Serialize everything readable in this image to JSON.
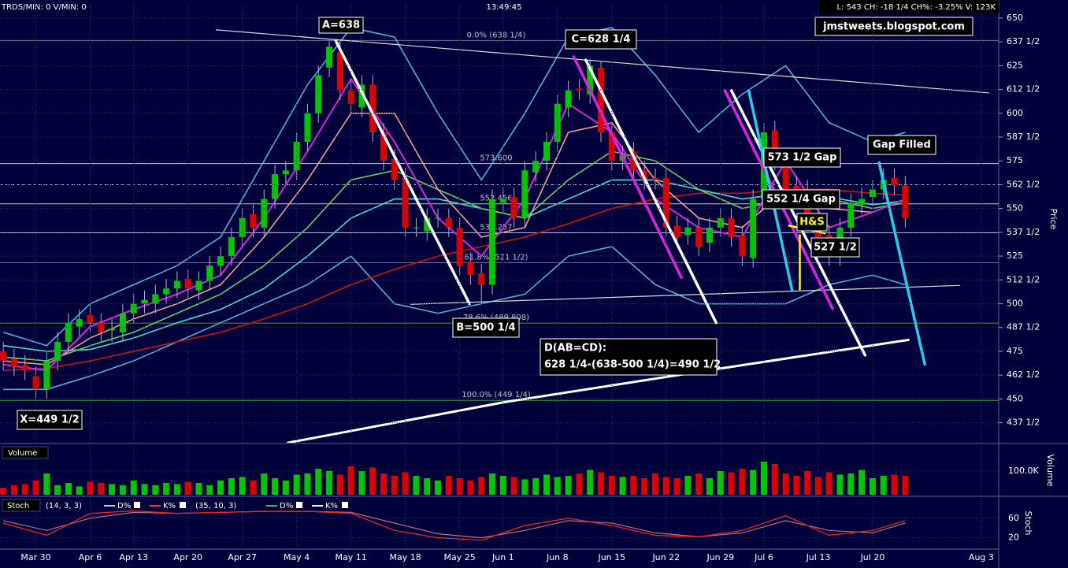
{
  "header": {
    "left": "TRDS/MIN: 0 V/MIN: 0",
    "time": "13:49:45",
    "quote": "L: 543 CH: -18 1/4 CH%: -3.25% V: 123K",
    "watermark": "jmstweets.blogspot.com"
  },
  "chart_data": [
    {
      "type": "candlestick",
      "y_label": "Price",
      "grid": true,
      "up_color": "#00c800",
      "down_color": "#e00000",
      "xlim": [
        -0.3,
        91.6
      ],
      "ylim": [
        427,
        657
      ],
      "xticks": [
        {
          "value": 3,
          "label": "Mar 30"
        },
        {
          "value": 8,
          "label": "Apr 6"
        },
        {
          "value": 12,
          "label": "Apr 13"
        },
        {
          "value": 17,
          "label": "Apr 20"
        },
        {
          "value": 22,
          "label": "Apr 27"
        },
        {
          "value": 27,
          "label": "May 4"
        },
        {
          "value": 32,
          "label": "May 11"
        },
        {
          "value": 37,
          "label": "May 18"
        },
        {
          "value": 42,
          "label": "May 25"
        },
        {
          "value": 46,
          "label": "Jun 1"
        },
        {
          "value": 51,
          "label": "Jun 8"
        },
        {
          "value": 56,
          "label": "Jun 15"
        },
        {
          "value": 61,
          "label": "Jun 22"
        },
        {
          "value": 66,
          "label": "Jun 29"
        },
        {
          "value": 70,
          "label": "Jul 6"
        },
        {
          "value": 75,
          "label": "Jul 13"
        },
        {
          "value": 80,
          "label": "Jul 20"
        },
        {
          "value": 90,
          "label": "Aug 3"
        }
      ],
      "yticks": [
        650,
        {
          "value": 637.5,
          "label": "637 1/2"
        },
        625,
        {
          "value": 612.5,
          "label": "612 1/2"
        },
        600,
        {
          "value": 587.5,
          "label": "587 1/2"
        },
        575,
        {
          "value": 562.5,
          "label": "562 1/2"
        },
        550,
        {
          "value": 537.5,
          "label": "537 1/2"
        },
        525,
        {
          "value": 512.5,
          "label": "512 1/2"
        },
        500,
        {
          "value": 487.5,
          "label": "487 1/2"
        },
        475,
        {
          "value": 462.5,
          "label": "462 1/2"
        },
        450,
        {
          "value": 437.5,
          "label": "437 1/2"
        }
      ],
      "open": [
        475,
        471,
        468,
        462,
        455,
        470,
        480,
        488,
        494,
        490,
        486,
        485,
        495,
        500,
        500,
        505,
        508,
        513,
        507,
        512,
        520,
        525,
        535,
        547,
        540,
        555,
        568,
        570,
        585,
        600,
        624,
        632,
        612,
        603,
        615,
        590,
        576,
        566,
        540,
        538,
        545,
        545,
        540,
        522,
        516,
        510,
        553,
        556,
        545,
        569,
        575,
        585,
        603,
        613,
        610,
        624,
        590,
        575,
        580,
        570,
        566,
        566,
        541,
        536,
        540,
        532,
        540,
        545,
        536,
        524,
        555,
        591,
        574,
        562,
        560,
        545,
        536,
        525,
        540,
        552,
        556,
        560,
        566,
        562
      ],
      "high": [
        480,
        476,
        473,
        467,
        475,
        485,
        495,
        497,
        499,
        495,
        492,
        500,
        505,
        507,
        510,
        513,
        517,
        518,
        517,
        525,
        530,
        540,
        550,
        552,
        560,
        573,
        575,
        590,
        605,
        625,
        638,
        637,
        617,
        620,
        620,
        595,
        581,
        571,
        545,
        550,
        550,
        550,
        545,
        527,
        521,
        560,
        561,
        561,
        575,
        580,
        590,
        610,
        617,
        618,
        628.25,
        627,
        595,
        583,
        585,
        575,
        571,
        571,
        546,
        545,
        545,
        545,
        550,
        550,
        541,
        560,
        595,
        596,
        579,
        567,
        565,
        550,
        541,
        545,
        558,
        561,
        565,
        571,
        571,
        567
      ],
      "low": [
        465,
        462,
        460,
        449.5,
        450,
        465,
        475,
        483,
        485,
        480,
        480,
        480,
        490,
        495,
        495,
        500,
        503,
        503,
        502,
        507,
        515,
        520,
        530,
        535,
        535,
        550,
        563,
        565,
        580,
        595,
        619,
        607,
        600,
        598,
        585,
        570,
        560,
        535,
        535,
        533,
        540,
        535,
        515,
        510,
        500.25,
        505,
        548,
        540,
        540,
        564,
        570,
        580,
        598,
        607,
        605,
        585,
        570,
        570,
        565,
        560,
        560,
        535,
        530,
        531,
        525,
        527,
        535,
        530,
        520,
        519,
        550,
        570,
        555,
        555,
        540,
        530,
        520,
        520,
        535,
        547,
        551,
        555,
        557,
        540
      ],
      "close": [
        470,
        467,
        465,
        455,
        470,
        480,
        490,
        492,
        490,
        485,
        487,
        495,
        500,
        502,
        505,
        508,
        512,
        508,
        512,
        520,
        525,
        535,
        545,
        540,
        555,
        568,
        570,
        585,
        600,
        620,
        635,
        612,
        605,
        615,
        590,
        575,
        565,
        540,
        540,
        545,
        545,
        540,
        520,
        515,
        510,
        555,
        555,
        545,
        570,
        575,
        585,
        605,
        612,
        612,
        625,
        590,
        575,
        578,
        570,
        565,
        565,
        540,
        535,
        540,
        530,
        540,
        545,
        535,
        525,
        555,
        590,
        575,
        560,
        560,
        545,
        535,
        525,
        540,
        553,
        555,
        560,
        565,
        562,
        545
      ],
      "overlay_x": [
        0,
        4,
        8,
        12,
        16,
        20,
        24,
        28,
        32,
        36,
        40,
        44,
        48,
        52,
        56,
        60,
        64,
        68,
        72,
        76,
        80,
        83
      ],
      "overlays": [
        {
          "color": "#4fb0e0",
          "values": [
            485,
            478,
            500,
            510,
            520,
            535,
            575,
            615,
            645,
            640,
            600,
            565,
            600,
            640,
            645,
            620,
            590,
            610,
            625,
            595,
            585,
            590
          ]
        },
        {
          "color": "#4fb0e0",
          "values": [
            455,
            455,
            462,
            470,
            480,
            490,
            500,
            510,
            525,
            500,
            495,
            500,
            505,
            525,
            530,
            510,
            500,
            500,
            500,
            510,
            515,
            510
          ]
        },
        {
          "color": "#d01010",
          "values": [
            465,
            466,
            470,
            475,
            480,
            485,
            492,
            500,
            510,
            518,
            525,
            530,
            535,
            542,
            550,
            555,
            558,
            558,
            560,
            560,
            558,
            557
          ]
        },
        {
          "color": "#40e0d0",
          "values": [
            478,
            475,
            476,
            482,
            490,
            497,
            508,
            525,
            545,
            555,
            555,
            550,
            545,
            555,
            565,
            565,
            560,
            555,
            558,
            556,
            552,
            554
          ]
        },
        {
          "color": "#60d060",
          "values": [
            472,
            470,
            478,
            485,
            495,
            505,
            520,
            540,
            565,
            570,
            560,
            550,
            545,
            565,
            580,
            575,
            560,
            550,
            555,
            555,
            550,
            553
          ]
        },
        {
          "color": "#f0a090",
          "values": [
            470,
            468,
            482,
            492,
            500,
            510,
            535,
            565,
            600,
            600,
            560,
            535,
            540,
            590,
            595,
            565,
            545,
            540,
            560,
            550,
            548,
            555
          ]
        },
        {
          "color": "#e020e0",
          "values": [
            468,
            465,
            488,
            497,
            505,
            515,
            545,
            580,
            618,
            585,
            545,
            525,
            555,
            605,
            590,
            555,
            540,
            535,
            575,
            540,
            548,
            555
          ]
        }
      ],
      "levels": [
        {
          "value": 638.25,
          "label": "0.0% (638 1/4)",
          "color": "#3a9a3a"
        },
        {
          "value": 573.6,
          "label": "573.600",
          "color": "#c8c8c8"
        },
        {
          "value": 562.5,
          "color": "#c8c8c8",
          "dashed": true
        },
        {
          "value": 552.456,
          "label": "552.456",
          "color": "#c8c8c8"
        },
        {
          "value": 537.257,
          "label": "537.257",
          "color": "#c8c8c8"
        },
        {
          "value": 521.5,
          "label": "61.8% (521 1/2)",
          "color": "#3a9a3a"
        },
        {
          "value": 489.808,
          "label": "78.6% (489.808)",
          "color": "#3a9a3a"
        },
        {
          "value": 449.25,
          "label": "100.0% (449 1/4)",
          "color": "#3a9a3a"
        }
      ],
      "trendlines": [
        {
          "color": "#d8d8d8",
          "width": 1.2,
          "points": [
            [
              19.6,
              643.8
            ],
            [
              90.7,
              610.7
            ]
          ]
        },
        {
          "color": "#d8d8d8",
          "width": 1.2,
          "points": [
            [
              37.5,
              499.7
            ],
            [
              88,
              509.6
            ]
          ]
        },
        {
          "color": "#ffffff",
          "width": 3,
          "points": [
            [
              26.2,
              427
            ],
            [
              46.1,
              448.3
            ],
            [
              66,
              466
            ],
            [
              83.3,
              481
            ]
          ]
        },
        {
          "color": "#ffffff",
          "width": 3.5,
          "points": [
            [
              30.6,
              638
            ],
            [
              42.9,
              500
            ]
          ]
        },
        {
          "color": "#ffffff",
          "width": 3.5,
          "points": [
            [
              53.6,
              628
            ],
            [
              65.6,
              490
            ]
          ]
        },
        {
          "color": "#ffffff",
          "width": 3.5,
          "points": [
            [
              67,
              612
            ],
            [
              79.3,
              473
            ]
          ]
        },
        {
          "color": "#e020e0",
          "width": 3.5,
          "points": [
            [
              52.5,
              629.7
            ],
            [
              62.4,
              513.8
            ]
          ]
        },
        {
          "color": "#e020e0",
          "width": 3.5,
          "points": [
            [
              66.4,
              612
            ],
            [
              76.3,
              497.6
            ]
          ]
        },
        {
          "color": "#20d0f0",
          "width": 3.5,
          "points": [
            [
              68.6,
              612
            ],
            [
              72.6,
              506.8
            ]
          ]
        },
        {
          "color": "#20d0f0",
          "width": 3.5,
          "points": [
            [
              80.6,
              574
            ],
            [
              84.8,
              468.2
            ]
          ]
        },
        {
          "color": "#ffff00",
          "width": 2.5,
          "points": [
            [
              73.3,
              536
            ],
            [
              73.3,
              507.5
            ]
          ]
        },
        {
          "color": "#ffff00",
          "width": 2.5,
          "points": [
            [
              72.3,
              541
            ],
            [
              75.6,
              537
            ]
          ]
        }
      ],
      "annotations": [
        {
          "lines": [
            "A=638"
          ]
        },
        {
          "lines": [
            "C=628 1/4"
          ]
        },
        {
          "lines": [
            "B=500 1/4"
          ]
        },
        {
          "lines": [
            "X=449 1/2"
          ]
        },
        {
          "lines": [
            "D(AB=CD):",
            "628 1/4-(638-500 1/4)=490 1/2"
          ]
        },
        {
          "lines": [
            "573 1/2 Gap"
          ]
        },
        {
          "lines": [
            "552 1/4 Gap"
          ]
        },
        {
          "lines": [
            "H&S"
          ],
          "color": "#ffff00"
        },
        {
          "lines": [
            "527 1/2"
          ]
        },
        {
          "lines": [
            "Gap Filled"
          ]
        }
      ]
    },
    {
      "type": "bar",
      "title": "Volume",
      "y_label": "Volume",
      "ylim": [
        0,
        200
      ],
      "yticks": [
        {
          "value": 100,
          "label": "100.0K"
        }
      ],
      "values": [
        30,
        40,
        45,
        60,
        90,
        40,
        50,
        35,
        55,
        50,
        45,
        40,
        60,
        45,
        40,
        50,
        45,
        55,
        50,
        40,
        60,
        70,
        75,
        60,
        90,
        70,
        60,
        85,
        90,
        110,
        100,
        85,
        120,
        100,
        115,
        90,
        80,
        95,
        80,
        70,
        60,
        80,
        70,
        60,
        75,
        90,
        80,
        75,
        65,
        70,
        85,
        75,
        80,
        90,
        105,
        95,
        80,
        75,
        80,
        70,
        90,
        75,
        70,
        80,
        90,
        70,
        100,
        95,
        110,
        105,
        140,
        130,
        90,
        80,
        100,
        75,
        95,
        85,
        90,
        105,
        70,
        80,
        85,
        80
      ]
    },
    {
      "type": "line",
      "title": "Stoch",
      "y_label": "Stoch",
      "ylim": [
        0,
        100
      ],
      "yticks": [
        20,
        60
      ],
      "studies": [
        {
          "params": "(14, 3, 3)",
          "items": [
            {
              "name": "D%",
              "color": "#c8c8c8"
            },
            {
              "name": "K%",
              "color": "#ff3030"
            }
          ]
        },
        {
          "params": "(35, 10, 3)",
          "items": [
            {
              "name": "D%",
              "color": "#30c030"
            },
            {
              "name": "K%",
              "color": "#ffffff"
            }
          ]
        }
      ],
      "x": [
        0,
        4,
        8,
        12,
        16,
        20,
        24,
        28,
        32,
        36,
        40,
        44,
        48,
        52,
        56,
        60,
        64,
        68,
        72,
        76,
        80,
        83
      ],
      "series": [
        {
          "color": "#b07080",
          "values": [
            55,
            35,
            60,
            72,
            70,
            72,
            74,
            74,
            72,
            50,
            28,
            20,
            35,
            55,
            50,
            30,
            22,
            30,
            55,
            35,
            30,
            50
          ]
        },
        {
          "color": "#ff2020",
          "values": [
            50,
            25,
            70,
            75,
            70,
            72,
            74,
            74,
            70,
            35,
            20,
            15,
            45,
            60,
            45,
            25,
            22,
            35,
            65,
            25,
            35,
            55
          ]
        }
      ]
    }
  ]
}
